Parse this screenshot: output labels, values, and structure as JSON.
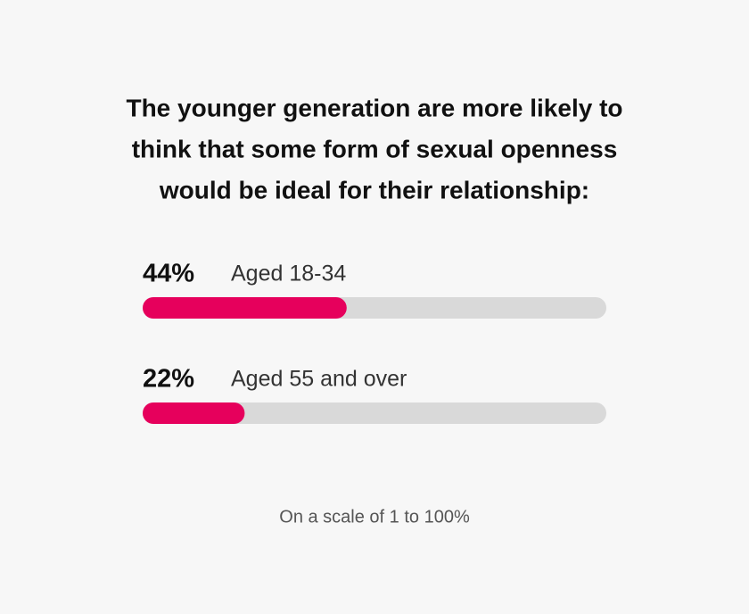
{
  "chart_data": {
    "type": "progress-bar",
    "title": [
      "The younger generation are more likely to",
      "think that some form of sexual openness",
      "would be ideal for their relationship:"
    ],
    "categories": [
      "Aged 18-34",
      "Aged 55 and over"
    ],
    "values": [
      44,
      22
    ],
    "value_labels": [
      "44%",
      "22%"
    ],
    "color": "#e6005c",
    "track_color": "#d9d9d9",
    "xlim": [
      0,
      100
    ],
    "note": "On a scale of 1 to 100%"
  }
}
